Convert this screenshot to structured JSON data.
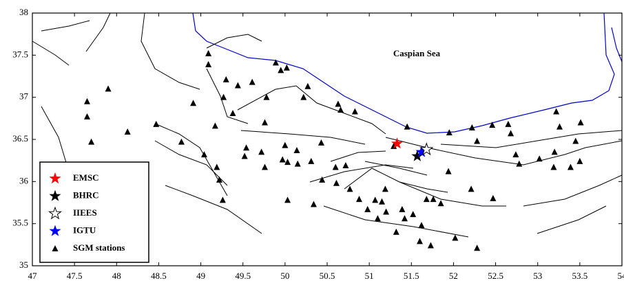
{
  "chart_data": {
    "type": "map",
    "annotations": [
      "Caspian Sea"
    ],
    "xlim": [
      47,
      54
    ],
    "ylim": [
      35,
      38
    ],
    "xticks": [
      47,
      47.5,
      48,
      48.5,
      49,
      49.5,
      50,
      50.5,
      51,
      51.5,
      52,
      52.5,
      53,
      53.5,
      54
    ],
    "yticks": [
      35,
      35.5,
      36,
      36.5,
      37,
      37.5,
      38
    ],
    "legend": "lower left",
    "series": [
      {
        "name": "EMSC",
        "color": "#ff0000",
        "marker": "star",
        "x": [
          51.33
        ],
        "y": [
          36.45
        ]
      },
      {
        "name": "BHRC",
        "color": "#000000",
        "marker": "star",
        "x": [
          51.57
        ],
        "y": [
          36.3
        ]
      },
      {
        "name": "IIEES",
        "color": "#000000",
        "marker": "star-outline",
        "x": [
          51.68
        ],
        "y": [
          36.38
        ]
      },
      {
        "name": "IGTU",
        "color": "#0000ff",
        "marker": "star",
        "x": [
          51.62
        ],
        "y": [
          36.35
        ]
      },
      {
        "name": "SGM stations",
        "color": "#000000",
        "marker": "triangle",
        "x": [
          47.9,
          47.65,
          47.65,
          47.7,
          48.13,
          48.47,
          48.77,
          48.91,
          49.09,
          49.09,
          49.27,
          49.3,
          49.44,
          49.38,
          49.17,
          49.04,
          49.19,
          49.22,
          49.26,
          49.61,
          49.78,
          49.89,
          49.95,
          50.02,
          49.76,
          49.54,
          49.52,
          49.72,
          49.76,
          49.97,
          50.0,
          50.03,
          50.14,
          50.15,
          50.31,
          50.03,
          50.22,
          50.43,
          50.27,
          50.63,
          50.66,
          50.83,
          50.44,
          50.34,
          50.6,
          50.72,
          50.61,
          50.77,
          50.88,
          50.98,
          51.07,
          51.19,
          51.15,
          51.1,
          51.32,
          51.39,
          51.42,
          51.52,
          51.62,
          51.68,
          51.76,
          51.85,
          51.94,
          51.6,
          51.73,
          52.02,
          52.21,
          52.28,
          52.47,
          52.22,
          52.28,
          52.46,
          52.65,
          52.68,
          52.74,
          52.78,
          53.02,
          53.22,
          53.26,
          53.2,
          53.19,
          53.39,
          53.45,
          53.5,
          53.51,
          51.95,
          51.45,
          51.29,
          51.2
        ],
        "y": [
          37.1,
          36.95,
          36.77,
          36.47,
          36.59,
          36.68,
          36.47,
          36.93,
          37.52,
          37.39,
          37.0,
          37.21,
          37.14,
          36.81,
          36.66,
          36.32,
          36.17,
          36.02,
          35.78,
          37.18,
          37.0,
          37.41,
          37.32,
          37.35,
          36.7,
          36.4,
          36.3,
          36.35,
          36.17,
          36.26,
          36.43,
          36.23,
          36.37,
          36.21,
          36.24,
          35.78,
          37.0,
          36.46,
          37.13,
          36.92,
          36.85,
          36.83,
          36.02,
          35.73,
          36.17,
          36.19,
          35.98,
          35.91,
          35.79,
          35.67,
          35.78,
          35.91,
          35.76,
          35.56,
          35.4,
          35.67,
          35.56,
          35.61,
          35.48,
          35.79,
          35.79,
          35.74,
          36.12,
          35.29,
          35.24,
          35.33,
          35.91,
          35.21,
          35.8,
          36.64,
          36.48,
          36.67,
          36.68,
          36.57,
          36.32,
          36.21,
          36.27,
          36.83,
          36.65,
          36.35,
          36.17,
          36.17,
          36.48,
          36.24,
          36.7,
          36.58,
          36.65,
          36.42,
          35.64
        ]
      }
    ]
  }
}
